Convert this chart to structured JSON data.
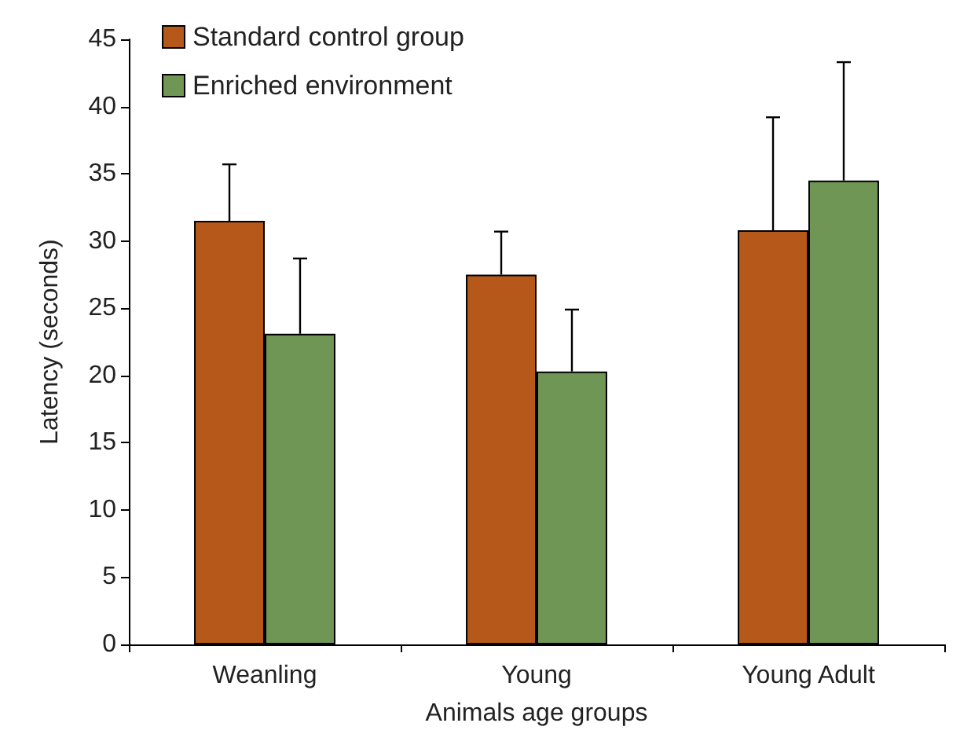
{
  "chart_data": {
    "type": "bar",
    "xlabel": "Animals age groups",
    "ylabel": "Latency (seconds)",
    "categories": [
      "Weanling",
      "Young",
      "Young Adult"
    ],
    "series": [
      {
        "name": "Standard control group",
        "color": "#b5581a",
        "values": [
          31.5,
          27.5,
          30.8
        ],
        "errors": [
          [
            31.5,
            35.7
          ],
          [
            27.5,
            30.7
          ],
          [
            30.8,
            39.2
          ]
        ]
      },
      {
        "name": "Enriched environment",
        "color": "#6f9655",
        "values": [
          23.1,
          20.3,
          34.5
        ],
        "errors": [
          [
            23.1,
            28.7
          ],
          [
            20.3,
            24.9
          ],
          [
            34.5,
            43.3
          ]
        ]
      }
    ],
    "ylim": [
      0,
      45
    ],
    "yticks": [
      0,
      5,
      10,
      15,
      20,
      25,
      30,
      35,
      40,
      45
    ],
    "grid": false,
    "legend": "top left"
  }
}
